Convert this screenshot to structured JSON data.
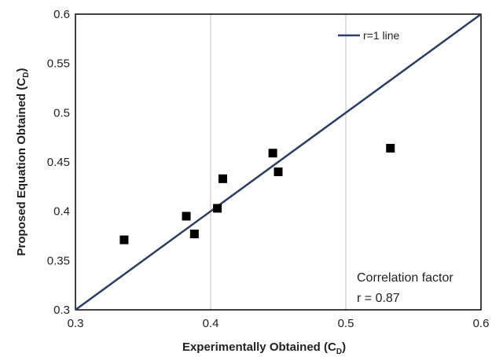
{
  "chart_data": {
    "type": "scatter",
    "title": "",
    "xlabel": "Experimentally Obtained (C",
    "xlabel_sub": "D",
    "xlabel_end": ")",
    "ylabel": "Proposed Equation Obtained (C",
    "ylabel_sub": "D",
    "ylabel_end": ")",
    "xlim": [
      0.3,
      0.6
    ],
    "ylim": [
      0.3,
      0.6
    ],
    "xticks": [
      "0.3",
      "0.4",
      "0.5",
      "0.6"
    ],
    "yticks": [
      "0.3",
      "0.35",
      "0.4",
      "0.45",
      "0.5",
      "0.55",
      "0.6"
    ],
    "grid": "vertical",
    "legend_placement": "top-right",
    "series": [
      {
        "type": "scatter",
        "marker": "square",
        "color": "#000000",
        "points": [
          [
            0.336,
            0.371
          ],
          [
            0.382,
            0.395
          ],
          [
            0.388,
            0.377
          ],
          [
            0.405,
            0.403
          ],
          [
            0.409,
            0.433
          ],
          [
            0.446,
            0.459
          ],
          [
            0.45,
            0.44
          ],
          [
            0.533,
            0.464
          ]
        ]
      },
      {
        "name": "r=1 line",
        "type": "line",
        "color": "#2a3d66",
        "points": [
          [
            0.3,
            0.3
          ],
          [
            0.6,
            0.6
          ]
        ]
      }
    ],
    "annotation": [
      "Correlation factor",
      "r = 0.87"
    ]
  }
}
